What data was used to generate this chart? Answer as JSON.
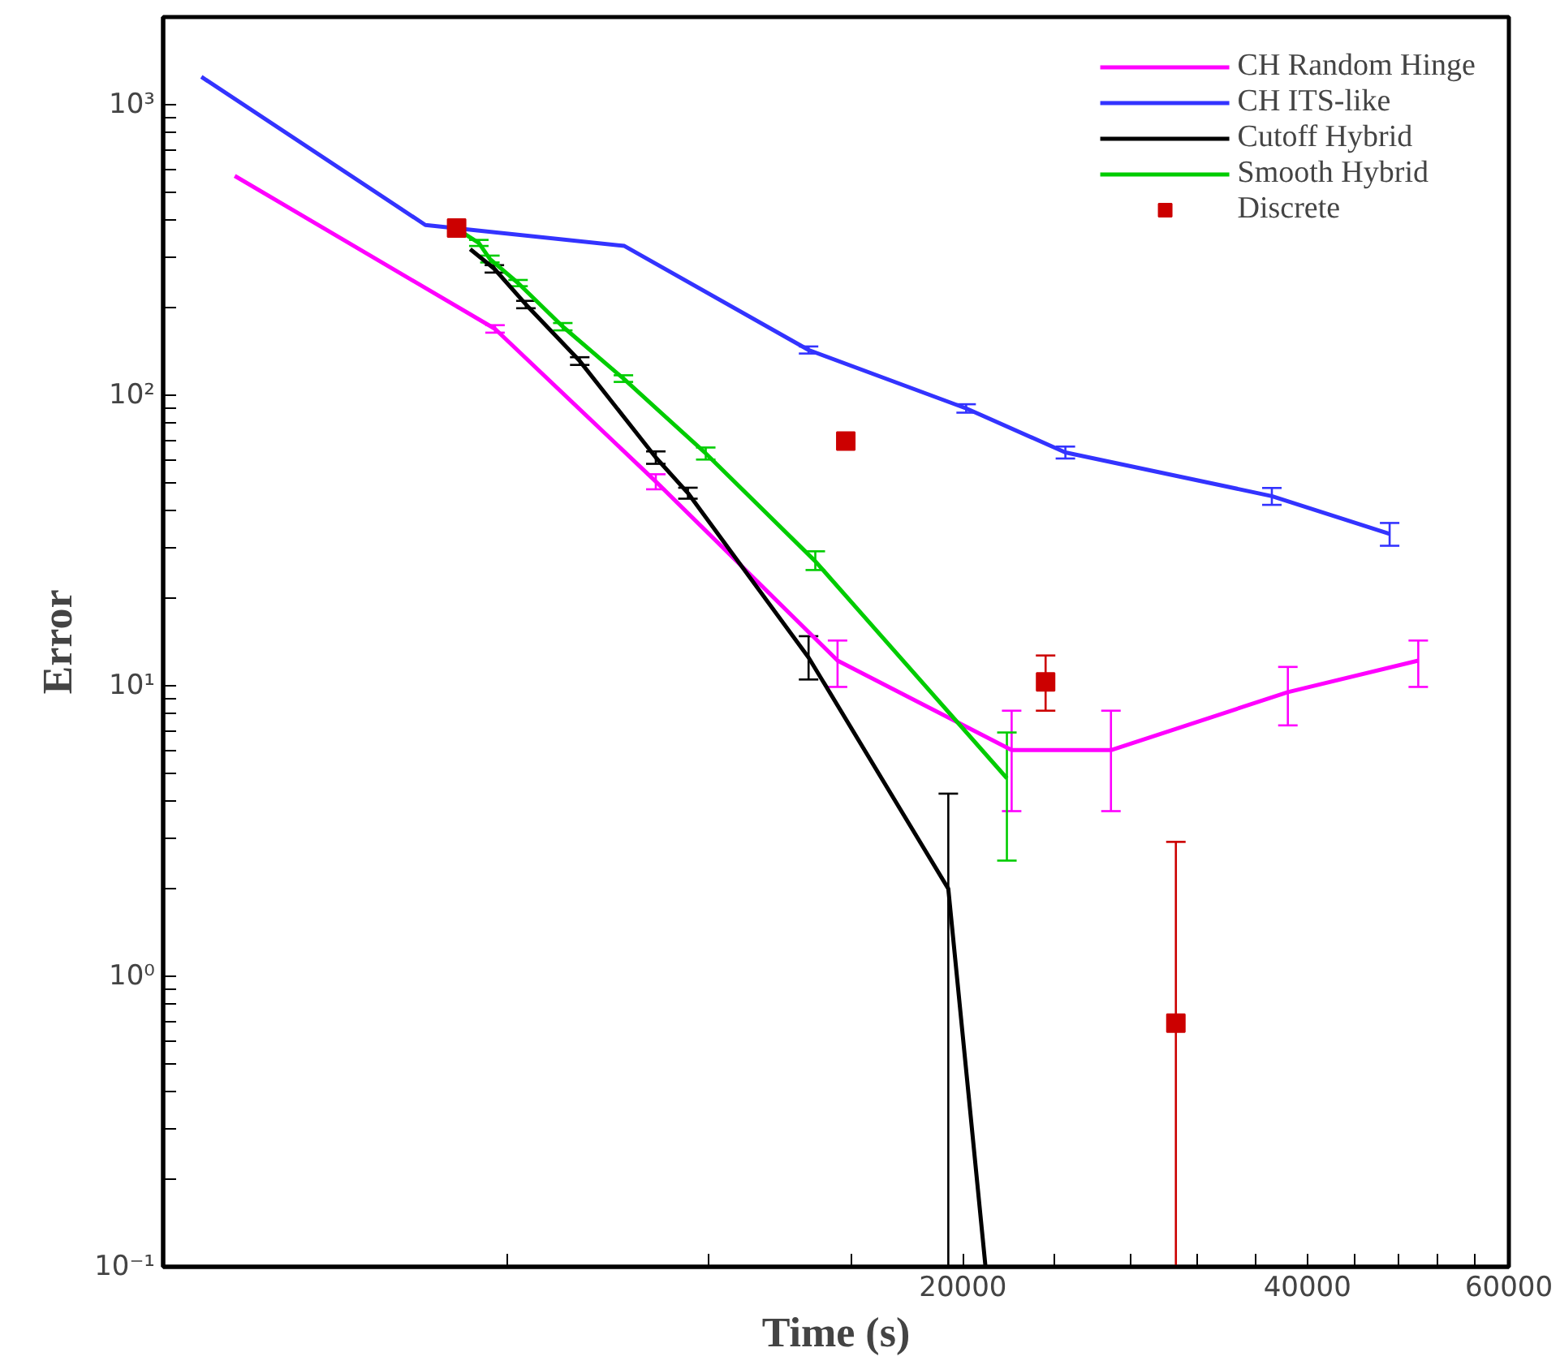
{
  "chart_data": {
    "type": "line",
    "xlabel": "Time (s)",
    "ylabel": "Error",
    "log": "xy",
    "grid": false,
    "legend": "top right",
    "marker": "none",
    "line_style": "solid",
    "xlim": [
      4000,
      60000
    ],
    "xticks": [
      {
        "value": 8000,
        "label": null
      },
      {
        "value": 12000,
        "label": null
      },
      {
        "value": 16000,
        "label": null
      },
      20000,
      {
        "value": 24000,
        "label": null
      },
      {
        "value": 28000,
        "label": null
      },
      {
        "value": 32000,
        "label": null
      },
      {
        "value": 36000,
        "label": null
      },
      40000,
      {
        "value": 44000,
        "label": null
      },
      {
        "value": 48000,
        "label": null
      },
      {
        "value": 52000,
        "label": null
      },
      {
        "value": 56000,
        "label": null
      },
      60000
    ],
    "ylim": [
      0.1,
      2000
    ],
    "yticks": [
      {
        "value": 0.1,
        "label": "10⁻¹"
      },
      {
        "value": 0.2,
        "label": null
      },
      {
        "value": 0.3,
        "label": null
      },
      {
        "value": 0.4,
        "label": null
      },
      {
        "value": 0.5,
        "label": null
      },
      {
        "value": 0.6,
        "label": null
      },
      {
        "value": 0.7,
        "label": null
      },
      {
        "value": 0.8,
        "label": null
      },
      {
        "value": 0.9,
        "label": null
      },
      {
        "value": 1,
        "label": "10⁰"
      },
      {
        "value": 2,
        "label": null
      },
      {
        "value": 3,
        "label": null
      },
      {
        "value": 4,
        "label": null
      },
      {
        "value": 5,
        "label": null
      },
      {
        "value": 6,
        "label": null
      },
      {
        "value": 7,
        "label": null
      },
      {
        "value": 8,
        "label": null
      },
      {
        "value": 9,
        "label": null
      },
      {
        "value": 10,
        "label": "10¹"
      },
      {
        "value": 20,
        "label": null
      },
      {
        "value": 30,
        "label": null
      },
      {
        "value": 40,
        "label": null
      },
      {
        "value": 50,
        "label": null
      },
      {
        "value": 60,
        "label": null
      },
      {
        "value": 70,
        "label": null
      },
      {
        "value": 80,
        "label": null
      },
      {
        "value": 90,
        "label": null
      },
      {
        "value": 100,
        "label": "10²"
      },
      {
        "value": 200,
        "label": null
      },
      {
        "value": 300,
        "label": null
      },
      {
        "value": 400,
        "label": null
      },
      {
        "value": 500,
        "label": null
      },
      {
        "value": 600,
        "label": null
      },
      {
        "value": 700,
        "label": null
      },
      {
        "value": 800,
        "label": null
      },
      {
        "value": 900,
        "label": null
      },
      {
        "value": 1000,
        "label": "10³"
      },
      {
        "value": 2000,
        "label": null
      }
    ],
    "series": [
      {
        "name": "CH Random Hinge",
        "color": "#ff00ff",
        "x": [
          4620,
          7800,
          10780,
          15540,
          22060,
          26940,
          38460,
          50000
        ],
        "values": [
          568,
          169,
          50.4,
          12.2,
          6.0,
          6.0,
          9.5,
          12.2
        ],
        "errors": [
          null,
          5,
          3,
          [
            9.9,
            14.3
          ],
          [
            3.7,
            8.2
          ],
          [
            3.7,
            8.2
          ],
          [
            7.3,
            11.6
          ],
          [
            9.9,
            14.3
          ]
        ]
      },
      {
        "name": "CH ITS-like",
        "color": "#3333ff",
        "x": [
          4320,
          6780,
          10120,
          14660,
          20130,
          24580,
          37240,
          47200
        ],
        "values": [
          1245,
          385,
          326,
          143,
          90,
          63.5,
          44.9,
          33.3
        ],
        "errors": [
          null,
          null,
          null,
          4,
          3,
          3,
          3,
          3
        ]
      },
      {
        "name": "Cutoff Hybrid",
        "color": "#000000",
        "x": [
          7420,
          7790,
          8300,
          9250,
          10780,
          11500,
          14660,
          19420,
          20930
        ],
        "values": [
          318,
          272,
          205,
          131,
          61,
          46,
          12.5,
          2.0,
          0.1
        ],
        "errors": [
          null,
          8,
          6,
          4,
          3,
          2,
          [
            10.5,
            14.8
          ],
          [
            0.1,
            4.25
          ],
          null
        ]
      },
      {
        "name": "Smooth Hybrid",
        "color": "#00cc00",
        "x": [
          7280,
          7550,
          7720,
          8170,
          8940,
          10100,
          11920,
          14860,
          21850
        ],
        "values": [
          366,
          334,
          294,
          243,
          172,
          114,
          63,
          26.8,
          4.8
        ],
        "errors": [
          null,
          8,
          8,
          6,
          5,
          3,
          3,
          [
            25,
            29
          ],
          [
            2.5,
            6.9
          ]
        ]
      },
      {
        "name": "Discrete",
        "type": "scatter",
        "marker": "square",
        "color": "#cc0000",
        "x": [
          7220,
          15800,
          23620,
          30700
        ],
        "values": [
          376,
          69.5,
          10.3,
          0.69
        ],
        "errors": [
          null,
          null,
          [
            8.2,
            12.7
          ],
          [
            0.1,
            2.9
          ]
        ]
      }
    ]
  }
}
